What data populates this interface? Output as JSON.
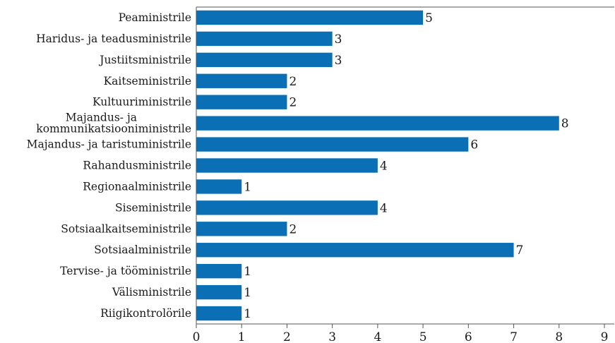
{
  "chart_data": {
    "type": "bar",
    "orientation": "horizontal",
    "categories": [
      "Peaministrile",
      "Haridus- ja teadusministrile",
      "Justiitsministrile",
      "Kaitseministrile",
      "Kultuuriministrile",
      "Majandus- ja\nkommunikatsiooniministrile",
      "Majandus- ja taristuministrile",
      "Rahandusministrile",
      "Regionaalministrile",
      "Siseministrile",
      "Sotsiaalkaitseministrile",
      "Sotsiaalministrile",
      "Tervise- ja tööministrile",
      "Välisministrile",
      "Riigikontrolörile"
    ],
    "values": [
      5,
      3,
      3,
      2,
      2,
      8,
      6,
      4,
      1,
      4,
      2,
      7,
      1,
      1,
      1
    ],
    "title": "",
    "xlabel": "",
    "ylabel": "",
    "xlim": [
      0,
      9
    ],
    "xticks": [
      0,
      1,
      2,
      3,
      4,
      5,
      6,
      7,
      8,
      9
    ],
    "grid": false,
    "legend": "none",
    "bar_color": "#0a6fb5",
    "axis_color": "#555555"
  }
}
